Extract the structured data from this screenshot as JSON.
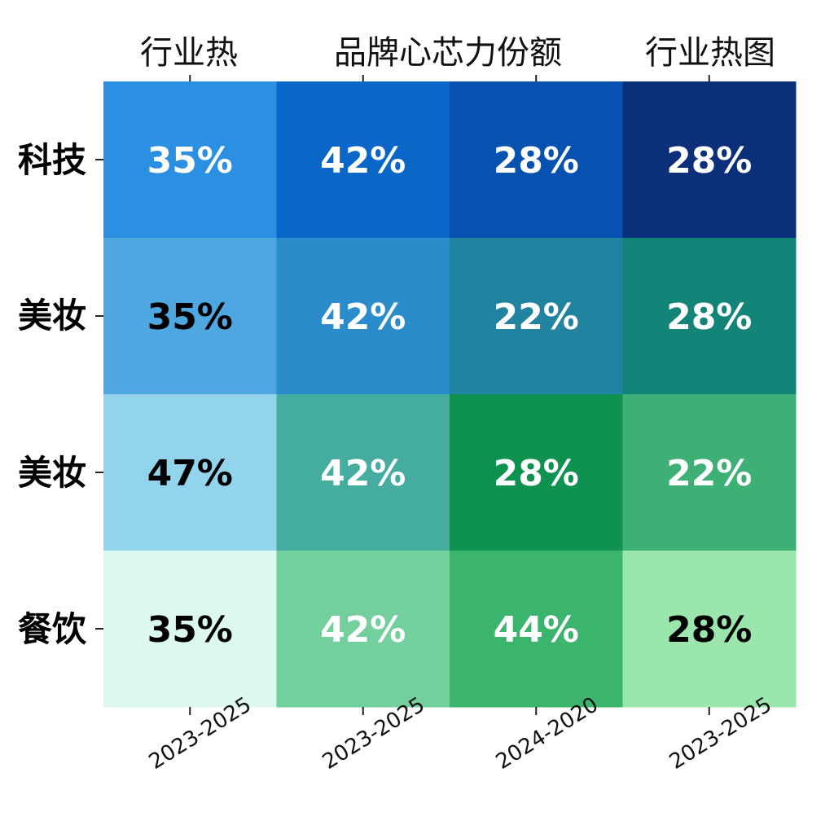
{
  "chart_data": {
    "type": "heatmap",
    "top_labels": [
      "行业热",
      "品牌心芯力份额",
      "行业热图"
    ],
    "row_labels": [
      "科技",
      "美妆",
      "美妆",
      "餐饮"
    ],
    "col_labels": [
      "2023-2025",
      "2023-2025",
      "2024-2020",
      "2023-2025"
    ],
    "values": [
      [
        35,
        42,
        28,
        28
      ],
      [
        35,
        42,
        22,
        28
      ],
      [
        47,
        42,
        28,
        22
      ],
      [
        35,
        42,
        44,
        28
      ]
    ],
    "cell_labels": [
      [
        "35%",
        "42%",
        "28%",
        "28%"
      ],
      [
        "35%",
        "42%",
        "22%",
        "28%"
      ],
      [
        "47%",
        "42%",
        "28%",
        "22%"
      ],
      [
        "35%",
        "42%",
        "44%",
        "28%"
      ]
    ],
    "cell_colors": [
      [
        "#2b8fe2",
        "#0a67c8",
        "#0751b1",
        "#0b2f79"
      ],
      [
        "#4fa7e2",
        "#2a8cca",
        "#20839f",
        "#138478"
      ],
      [
        "#93d4ed",
        "#45ad9f",
        "#0f9150",
        "#3fb075"
      ],
      [
        "#dcf9ef",
        "#73cf9c",
        "#3bb46d",
        "#9be6ad"
      ]
    ],
    "text_colors": [
      [
        "#ffffff",
        "#ffffff",
        "#ffffff",
        "#ffffff"
      ],
      [
        "#000000",
        "#ffffff",
        "#ffffff",
        "#ffffff"
      ],
      [
        "#000000",
        "#ffffff",
        "#ffffff",
        "#ffffff"
      ],
      [
        "#000000",
        "#ffffff",
        "#ffffff",
        "#000000"
      ]
    ],
    "grid": false,
    "legend": "none"
  }
}
